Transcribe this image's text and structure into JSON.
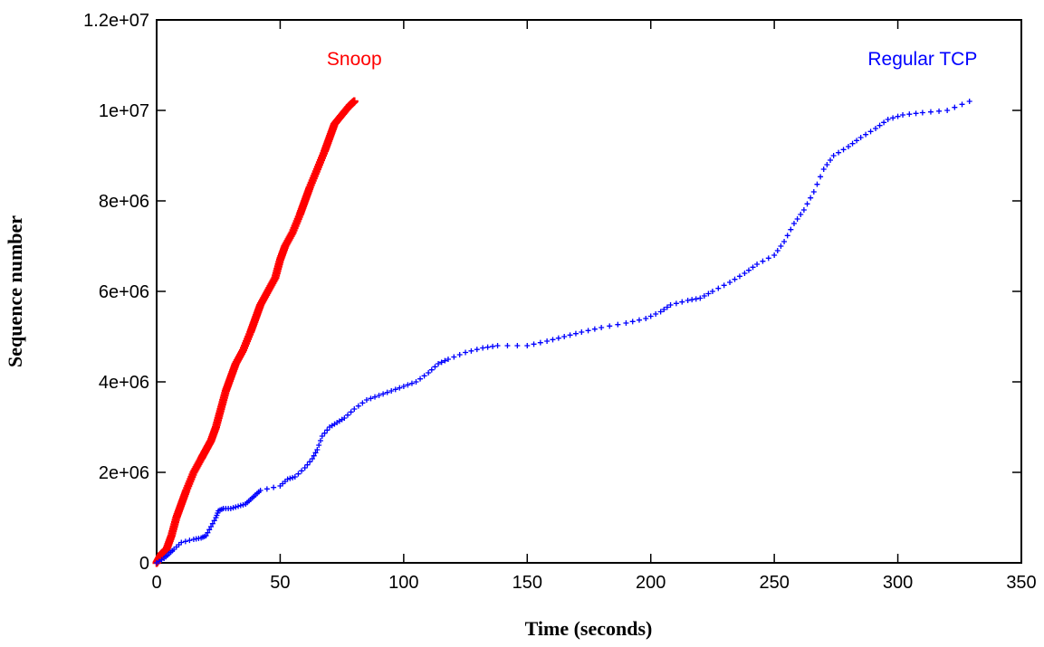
{
  "chart_data": {
    "type": "scatter",
    "title": "",
    "xlabel": "Time (seconds)",
    "ylabel": "Sequence number",
    "xlim": [
      0,
      350
    ],
    "ylim": [
      0,
      12000000
    ],
    "x_ticks": [
      0,
      50,
      100,
      150,
      200,
      250,
      300,
      350
    ],
    "x_tick_labels": [
      "0",
      "50",
      "100",
      "150",
      "200",
      "250",
      "300",
      "350"
    ],
    "y_ticks": [
      0,
      2000000,
      4000000,
      6000000,
      8000000,
      10000000,
      12000000
    ],
    "y_tick_labels": [
      "0",
      "2e+06",
      "4e+06",
      "6e+06",
      "8e+06",
      "1e+07",
      "1.2e+07"
    ],
    "grid": false,
    "legend": "none",
    "series": [
      {
        "name": "Snoop",
        "color": "#ff0000",
        "marker": "plus-dense",
        "label_at": [
          80,
          10800000
        ],
        "points": [
          [
            0,
            0
          ],
          [
            1,
            100000
          ],
          [
            2,
            200000
          ],
          [
            4,
            300000
          ],
          [
            6,
            600000
          ],
          [
            8,
            1000000
          ],
          [
            10,
            1300000
          ],
          [
            12,
            1600000
          ],
          [
            15,
            2000000
          ],
          [
            18,
            2300000
          ],
          [
            20,
            2500000
          ],
          [
            22,
            2700000
          ],
          [
            24,
            3000000
          ],
          [
            26,
            3400000
          ],
          [
            28,
            3800000
          ],
          [
            30,
            4100000
          ],
          [
            32,
            4400000
          ],
          [
            35,
            4700000
          ],
          [
            38,
            5100000
          ],
          [
            40,
            5400000
          ],
          [
            42,
            5700000
          ],
          [
            45,
            6000000
          ],
          [
            48,
            6300000
          ],
          [
            50,
            6700000
          ],
          [
            52,
            7000000
          ],
          [
            55,
            7300000
          ],
          [
            58,
            7700000
          ],
          [
            60,
            8000000
          ],
          [
            62,
            8300000
          ],
          [
            65,
            8700000
          ],
          [
            68,
            9100000
          ],
          [
            70,
            9400000
          ],
          [
            72,
            9700000
          ],
          [
            75,
            9900000
          ],
          [
            78,
            10100000
          ],
          [
            80,
            10200000
          ]
        ]
      },
      {
        "name": "Regular TCP",
        "color": "#0000ff",
        "marker": "plus",
        "label_at": [
          310,
          10800000
        ],
        "points": [
          [
            0,
            0
          ],
          [
            3,
            100000
          ],
          [
            5,
            200000
          ],
          [
            7,
            300000
          ],
          [
            10,
            450000
          ],
          [
            15,
            520000
          ],
          [
            18,
            550000
          ],
          [
            20,
            600000
          ],
          [
            22,
            800000
          ],
          [
            24,
            1000000
          ],
          [
            25,
            1150000
          ],
          [
            27,
            1200000
          ],
          [
            30,
            1200000
          ],
          [
            33,
            1250000
          ],
          [
            36,
            1300000
          ],
          [
            38,
            1400000
          ],
          [
            40,
            1500000
          ],
          [
            42,
            1600000
          ],
          [
            50,
            1700000
          ],
          [
            53,
            1850000
          ],
          [
            56,
            1900000
          ],
          [
            60,
            2100000
          ],
          [
            63,
            2300000
          ],
          [
            65,
            2500000
          ],
          [
            67,
            2800000
          ],
          [
            70,
            3000000
          ],
          [
            73,
            3100000
          ],
          [
            76,
            3200000
          ],
          [
            80,
            3400000
          ],
          [
            85,
            3600000
          ],
          [
            90,
            3700000
          ],
          [
            95,
            3800000
          ],
          [
            100,
            3900000
          ],
          [
            105,
            4000000
          ],
          [
            110,
            4200000
          ],
          [
            114,
            4400000
          ],
          [
            118,
            4500000
          ],
          [
            125,
            4650000
          ],
          [
            132,
            4750000
          ],
          [
            138,
            4800000
          ],
          [
            150,
            4800000
          ],
          [
            158,
            4900000
          ],
          [
            165,
            5000000
          ],
          [
            172,
            5100000
          ],
          [
            180,
            5200000
          ],
          [
            190,
            5300000
          ],
          [
            198,
            5400000
          ],
          [
            204,
            5550000
          ],
          [
            208,
            5700000
          ],
          [
            215,
            5800000
          ],
          [
            220,
            5850000
          ],
          [
            225,
            6000000
          ],
          [
            232,
            6200000
          ],
          [
            238,
            6400000
          ],
          [
            243,
            6600000
          ],
          [
            250,
            6800000
          ],
          [
            254,
            7100000
          ],
          [
            258,
            7500000
          ],
          [
            262,
            7800000
          ],
          [
            266,
            8200000
          ],
          [
            270,
            8700000
          ],
          [
            274,
            9000000
          ],
          [
            280,
            9200000
          ],
          [
            285,
            9400000
          ],
          [
            291,
            9600000
          ],
          [
            296,
            9800000
          ],
          [
            302,
            9900000
          ],
          [
            310,
            9950000
          ],
          [
            320,
            10000000
          ],
          [
            329,
            10200000
          ]
        ]
      }
    ]
  }
}
